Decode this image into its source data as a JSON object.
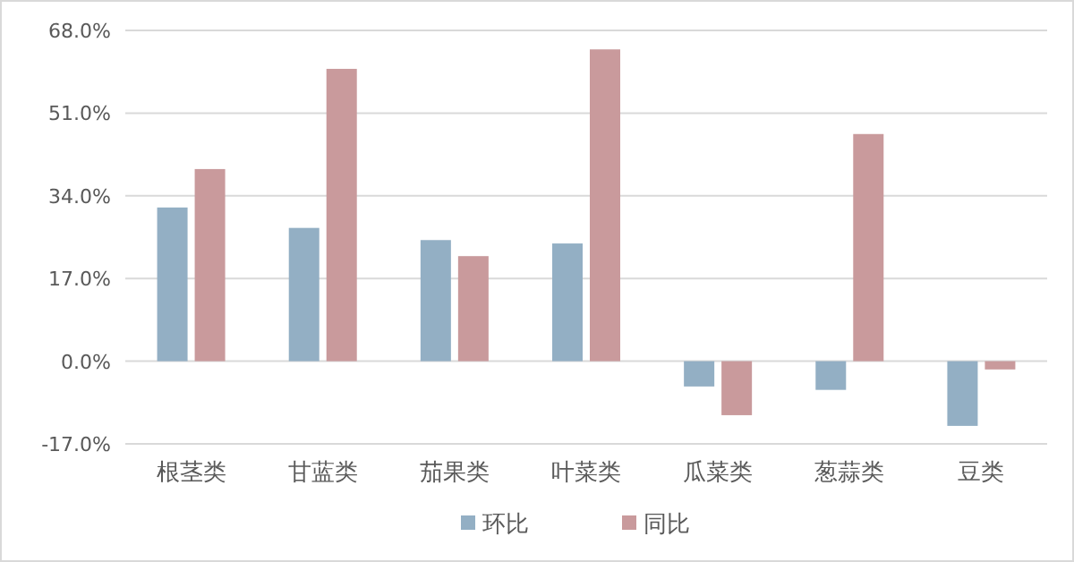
{
  "chart_data": {
    "type": "bar",
    "categories": [
      "根茎类",
      "甘蓝类",
      "茄果类",
      "叶菜类",
      "瓜菜类",
      "葱蒜类",
      "豆类"
    ],
    "series": [
      {
        "name": "环比",
        "color": "#93afc4",
        "values": [
          31.6,
          27.4,
          24.9,
          24.2,
          -5.2,
          -5.9,
          -13.3
        ]
      },
      {
        "name": "同比",
        "color": "#c99a9c",
        "values": [
          39.5,
          60.1,
          21.6,
          64.1,
          -11.1,
          46.7,
          -1.7
        ]
      }
    ],
    "ylim": [
      -17,
      68
    ],
    "yticks": [
      {
        "value": -17,
        "label": "-17.0%"
      },
      {
        "value": 0,
        "label": "0.0%"
      },
      {
        "value": 17,
        "label": "17.0%"
      },
      {
        "value": 34,
        "label": "34.0%"
      },
      {
        "value": 51,
        "label": "51.0%"
      },
      {
        "value": 68,
        "label": "68.0%"
      }
    ],
    "grid": "y",
    "legend": "bottom"
  }
}
